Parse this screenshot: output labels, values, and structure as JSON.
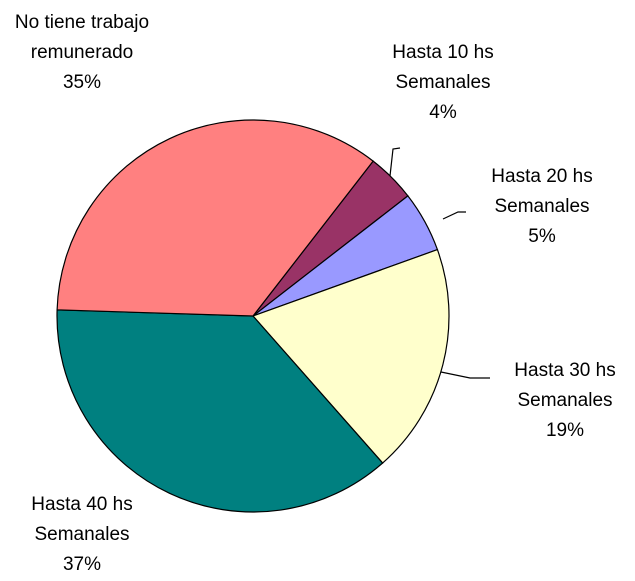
{
  "chart_data": {
    "type": "pie",
    "categories": [
      "Hasta 10 hs Semanales",
      "Hasta 20 hs Semanales",
      "Hasta 30 hs Semanales",
      "Hasta 40 hs Semanales",
      "No tiene trabajo remunerado"
    ],
    "values": [
      4,
      5,
      19,
      37,
      35
    ],
    "value_labels": [
      "4%",
      "5%",
      "19%",
      "37%",
      "35%"
    ],
    "colors": [
      "#993366",
      "#9999ff",
      "#ffffcc",
      "#008080",
      "#ff8080"
    ]
  }
}
